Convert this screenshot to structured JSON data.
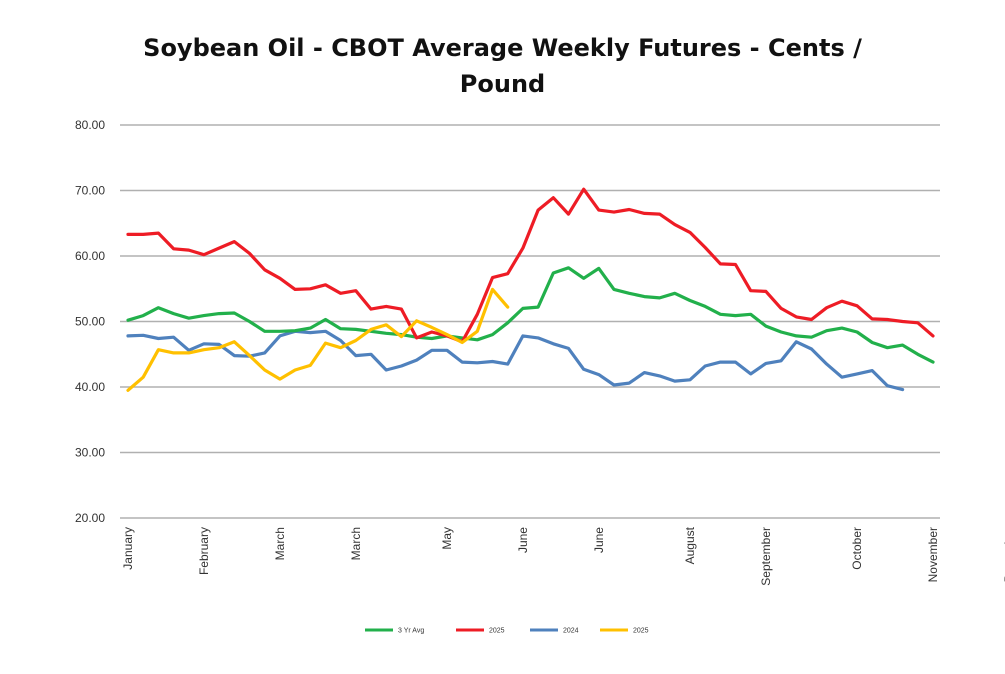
{
  "chart_data": {
    "type": "line",
    "title": "Soybean Oil - CBOT Average Weekly Futures - Cents / Pound",
    "title_lines": [
      "Soybean Oil - CBOT Average Weekly Futures - Cents /",
      "Pound"
    ],
    "xlabel": "",
    "ylabel": "",
    "ylim": [
      20,
      80
    ],
    "yticks": [
      "20.00",
      "30.00",
      "40.00",
      "50.00",
      "60.00",
      "70.00",
      "80.00"
    ],
    "grid": "horizontal",
    "legend_position": "bottom",
    "x_tick_labels": [
      {
        "label": "January",
        "week": 0
      },
      {
        "label": "February",
        "week": 5
      },
      {
        "label": "March",
        "week": 10
      },
      {
        "label": "March",
        "week": 15
      },
      {
        "label": "May",
        "week": 21
      },
      {
        "label": "June",
        "week": 26
      },
      {
        "label": "June",
        "week": 31
      },
      {
        "label": "August",
        "week": 37
      },
      {
        "label": "September",
        "week": 42
      },
      {
        "label": "October",
        "week": 48
      },
      {
        "label": "November",
        "week": 53
      },
      {
        "label": "December",
        "week": 58
      }
    ],
    "series": [
      {
        "name": "3 Yr Avg",
        "color": "#22b04b",
        "values": [
          50.2,
          50.9,
          52.1,
          51.2,
          50.5,
          50.9,
          51.2,
          51.3,
          50.0,
          48.5,
          48.5,
          48.6,
          49.0,
          50.3,
          48.9,
          48.8,
          48.5,
          48.2,
          48.0,
          47.6,
          47.4,
          47.8,
          47.5,
          47.2,
          48.0,
          49.8,
          52.0,
          52.2,
          57.4,
          58.2,
          56.6,
          58.1,
          54.9,
          54.3,
          53.8,
          53.6,
          54.3,
          53.2,
          52.3,
          51.1,
          50.9,
          51.1,
          49.3,
          48.4,
          47.8,
          47.6,
          48.6,
          49.0,
          48.4,
          46.8,
          46.0,
          46.4,
          45.0,
          43.8
        ]
      },
      {
        "name": "2025",
        "color": "#ee1c25",
        "values": [
          63.3,
          63.3,
          63.5,
          61.1,
          60.9,
          60.2,
          61.2,
          62.2,
          60.4,
          57.9,
          56.6,
          54.9,
          55.0,
          55.6,
          54.3,
          54.7,
          51.9,
          52.3,
          51.9,
          47.5,
          48.4,
          47.8,
          46.9,
          51.1,
          56.7,
          57.3,
          61.2,
          67.0,
          68.9,
          66.4,
          70.2,
          67.0,
          66.7,
          67.1,
          66.5,
          66.4,
          64.8,
          63.6,
          61.3,
          58.8,
          58.7,
          54.7,
          54.6,
          52.0,
          50.7,
          50.3,
          52.1,
          53.1,
          52.4,
          50.4,
          50.3,
          50.0,
          49.8,
          47.8
        ]
      },
      {
        "name": "2024",
        "color": "#4f81bd",
        "values": [
          47.8,
          47.9,
          47.4,
          47.6,
          45.6,
          46.6,
          46.5,
          44.8,
          44.7,
          45.2,
          47.8,
          48.5,
          48.3,
          48.5,
          47.1,
          44.8,
          45.0,
          42.6,
          43.2,
          44.1,
          45.6,
          45.6,
          43.8,
          43.7,
          43.9,
          43.5,
          47.8,
          47.5,
          46.6,
          45.9,
          42.7,
          41.9,
          40.3,
          40.6,
          42.2,
          41.7,
          40.9,
          41.1,
          43.2,
          43.8,
          43.8,
          42.0,
          43.6,
          44.0,
          46.9,
          45.8,
          43.5,
          41.5,
          42.0,
          42.5,
          40.2,
          39.6
        ]
      },
      {
        "name": "2025",
        "color": "#ffc000",
        "values": [
          39.5,
          41.5,
          45.7,
          45.2,
          45.2,
          45.7,
          46.0,
          46.9,
          44.8,
          42.6,
          41.2,
          42.6,
          43.3,
          46.7,
          46.0,
          47.1,
          48.8,
          49.5,
          47.7,
          50.1,
          49.1,
          48.0,
          46.8,
          48.5,
          54.9,
          52.2
        ]
      }
    ]
  }
}
